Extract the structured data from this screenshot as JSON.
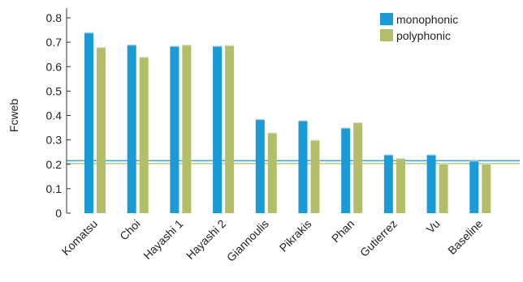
{
  "chart_data": {
    "type": "bar",
    "categories": [
      "Komatsu",
      "Choi",
      "Hayashi 1",
      "Hayashi 2",
      "Giannoulis",
      "Pikrakis",
      "Phan",
      "Gutierrez",
      "Vu",
      "Baseline"
    ],
    "series": [
      {
        "name": "monophonic",
        "color": "#1a9ad6",
        "values": [
          0.74,
          0.69,
          0.685,
          0.685,
          0.385,
          0.38,
          0.35,
          0.24,
          0.24,
          0.215
        ]
      },
      {
        "name": "polyphonic",
        "color": "#b4bd68",
        "values": [
          0.68,
          0.64,
          0.69,
          0.688,
          0.33,
          0.3,
          0.372,
          0.225,
          0.203,
          0.203
        ]
      }
    ],
    "reference_lines": [
      {
        "y": 0.215,
        "color": "#1a9ad6"
      },
      {
        "y": 0.203,
        "color": "#b4bd68"
      }
    ],
    "xlabel": "",
    "ylabel": "Fcweb",
    "ylim": [
      0,
      0.8
    ],
    "yticks": [
      "0",
      "0.1",
      "0.2",
      "0.3",
      "0.4",
      "0.5",
      "0.6",
      "0.7",
      "0.8"
    ],
    "legend_position": "top-right",
    "grid": false
  }
}
